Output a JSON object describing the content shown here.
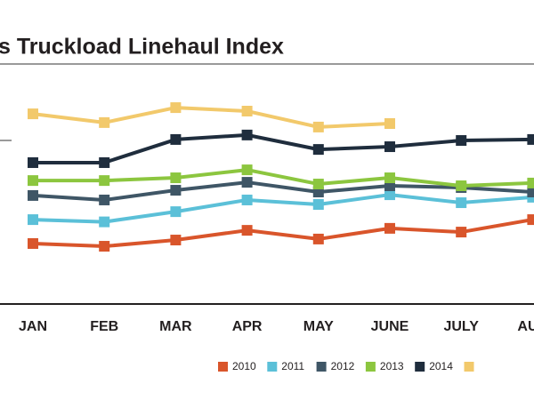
{
  "chart_data": {
    "type": "line",
    "title": "s Truckload Linehaul Index",
    "categories": [
      "JAN",
      "FEB",
      "MAR",
      "APR",
      "MAY",
      "JUNE",
      "JULY",
      "AU"
    ],
    "ylim": [
      0,
      100
    ],
    "series": [
      {
        "name": "2010",
        "color": "#d9552b",
        "values": [
          24.3,
          23.2,
          25.7,
          29.6,
          26.1,
          30.4,
          28.9,
          33.9
        ]
      },
      {
        "name": "2011",
        "color": "#5bc0d8",
        "values": [
          33.9,
          33.0,
          37.1,
          41.8,
          40.0,
          43.9,
          40.7,
          42.9
        ]
      },
      {
        "name": "2012",
        "color": "#3f5666",
        "values": [
          43.6,
          41.8,
          45.7,
          48.9,
          45.0,
          47.5,
          46.8,
          45.0
        ]
      },
      {
        "name": "2013",
        "color": "#8cc63f",
        "values": [
          49.6,
          49.6,
          50.7,
          53.9,
          48.2,
          50.7,
          47.5,
          48.6
        ]
      },
      {
        "name": "2014",
        "color": "#1f2d3d",
        "values": [
          56.8,
          56.8,
          66.1,
          67.9,
          62.1,
          63.2,
          65.7,
          66.1
        ]
      },
      {
        "name": null,
        "color": "#f2c96b",
        "values": [
          76.4,
          72.9,
          78.9,
          77.5,
          71.1,
          72.5,
          null,
          null
        ]
      }
    ]
  }
}
